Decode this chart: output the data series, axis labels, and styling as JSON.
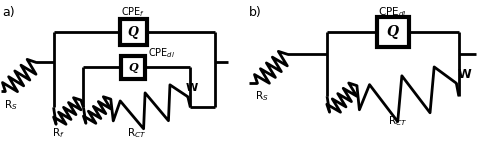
{
  "fig_width": 5.0,
  "fig_height": 1.45,
  "dpi": 100,
  "bg_color": "#ffffff",
  "line_color": "#000000",
  "line_width": 2.0,
  "label_a": "a)",
  "label_b": "b)",
  "circuit_a": {
    "Rs_label": "R$_S$",
    "Rf_label": "R$_f$",
    "CPEf_label": "CPE$_f$",
    "CPEdl_label": "CPE$_{dl}$",
    "RCT_label": "R$_{CT}$",
    "W_label": "W"
  },
  "circuit_b": {
    "Rs_label": "R$_S$",
    "CPEdl_label": "CPE$_{dl}$",
    "RCT_label": "R$_{CT}$",
    "W_label": "W"
  }
}
